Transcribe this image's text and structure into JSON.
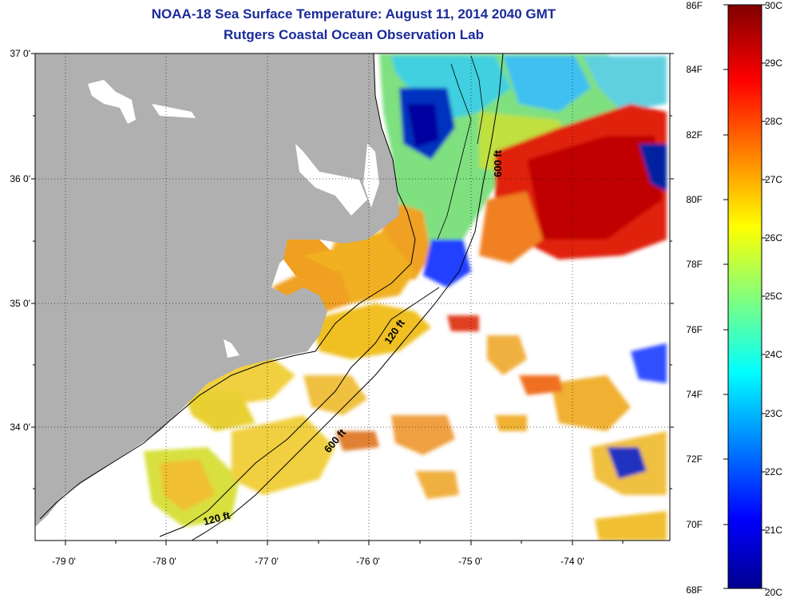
{
  "title": "NOAA-18 Sea Surface Temperature:  August 11, 2014 2040 GMT",
  "subtitle": "Rutgers Coastal Ocean Observation Lab",
  "latitude_labels": [
    "37 0'",
    "36 0'",
    "35 0'",
    "34 0'"
  ],
  "longitude_labels": [
    "-79 0'",
    "-78 0'",
    "-77 0'",
    "-76 0'",
    "-75 0'",
    "-74 0'"
  ],
  "colorbar": {
    "fahrenheit_labels": [
      "86F",
      "84F",
      "82F",
      "80F",
      "78F",
      "76F",
      "74F",
      "72F",
      "70F",
      "68F"
    ],
    "celsius_labels": [
      "30C",
      "29C",
      "28C",
      "27C",
      "26C",
      "25C",
      "24C",
      "23C",
      "22C",
      "21C",
      "20C"
    ],
    "min_c": 20,
    "max_c": 30
  },
  "contour_labels": {
    "north_600": "600 ft",
    "mid_120": "120 ft",
    "mid_600": "600 ft",
    "south_120": "120 ft"
  },
  "colors": {
    "title": "#1a2a9a",
    "land": "#b0b0b0"
  }
}
